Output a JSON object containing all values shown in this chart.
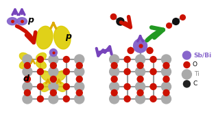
{
  "bg_color": "#ffffff",
  "purple": "#7744bb",
  "purple_light": "#8866cc",
  "red": "#cc1100",
  "yellow": "#ddcc00",
  "yellow_light": "#eedd44",
  "green": "#229922",
  "gray": "#aaaaaa",
  "gray_light": "#cccccc",
  "black": "#111111",
  "bond_color": "#999999",
  "legend_labels": [
    "Sb/Bi",
    "O",
    "Ti",
    "C"
  ],
  "legend_colors": [
    "#8866cc",
    "#cc1100",
    "#aaaaaa",
    "#222222"
  ],
  "legend_sizes": [
    6,
    4.5,
    7,
    5
  ]
}
